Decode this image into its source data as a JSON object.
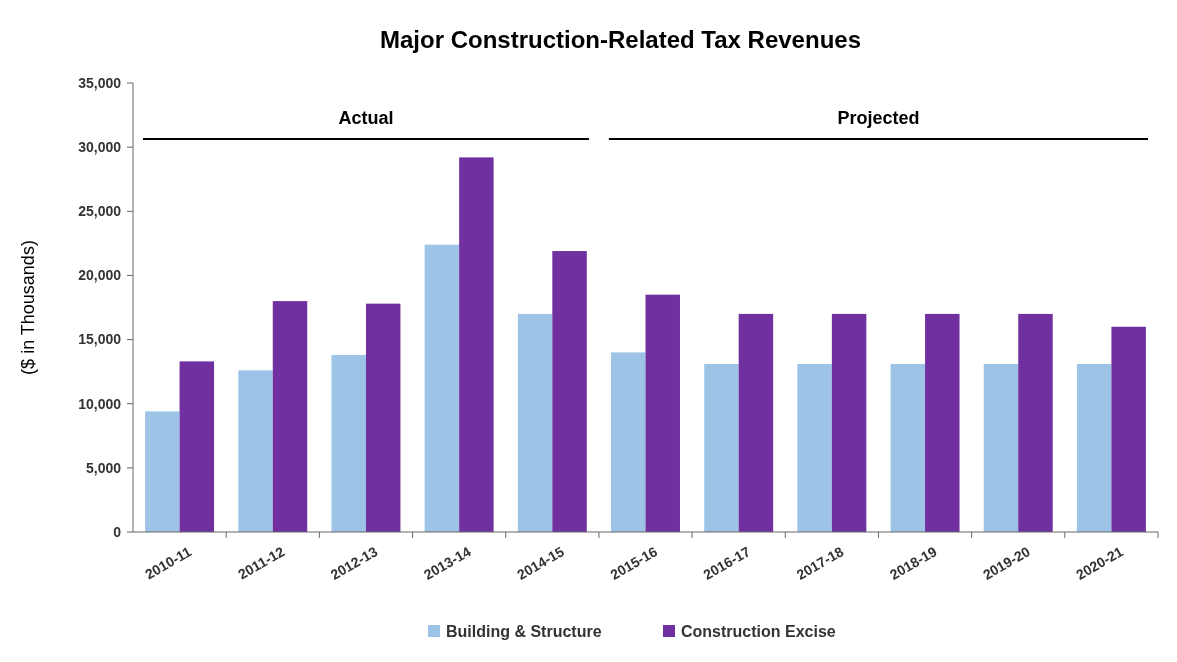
{
  "chart_data": {
    "type": "bar",
    "title": "Major Construction-Related Tax Revenues",
    "ylabel": "($ in Thousands)",
    "categories": [
      "2010-11",
      "2011-12",
      "2012-13",
      "2013-14",
      "2014-15",
      "2015-16",
      "2016-17",
      "2017-18",
      "2018-19",
      "2019-20",
      "2020-21"
    ],
    "series": [
      {
        "name": "Building & Structure",
        "color": "#9dc3e6",
        "values": [
          9400,
          12600,
          13800,
          22400,
          17000,
          14000,
          13100,
          13100,
          13100,
          13100,
          13100
        ]
      },
      {
        "name": "Construction Excise",
        "color": "#7030a0",
        "values": [
          13300,
          18000,
          17800,
          29200,
          21900,
          18500,
          17000,
          17000,
          17000,
          17000,
          16000
        ]
      }
    ],
    "ylim": [
      0,
      35000
    ],
    "yticks": [
      {
        "value": 0,
        "label": "0"
      },
      {
        "value": 5000,
        "label": "5,000"
      },
      {
        "value": 10000,
        "label": "10,000"
      },
      {
        "value": 15000,
        "label": "15,000"
      },
      {
        "value": 20000,
        "label": "20,000"
      },
      {
        "value": 25000,
        "label": "25,000"
      },
      {
        "value": 30000,
        "label": "30,000"
      },
      {
        "value": 35000,
        "label": "35,000"
      }
    ],
    "annotations": [
      "Actual",
      "Projected"
    ],
    "legend": "bottom",
    "grid": false
  }
}
